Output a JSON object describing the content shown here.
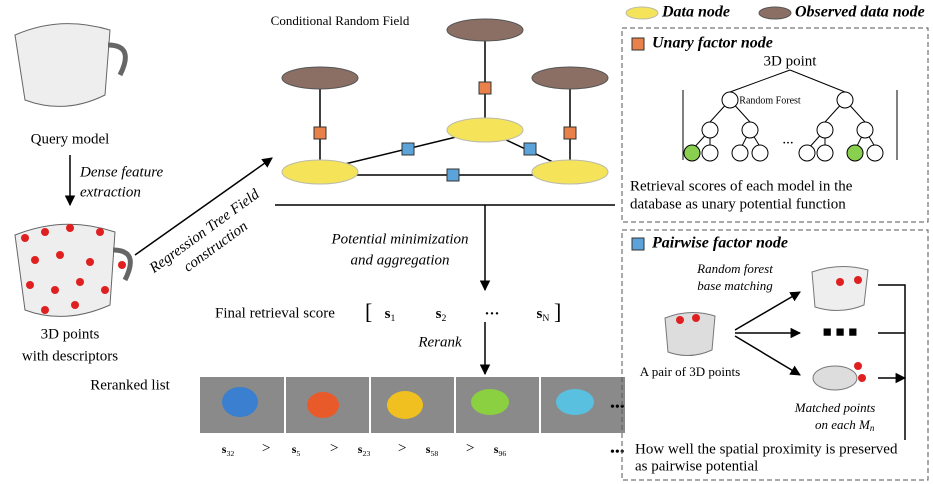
{
  "crf_title": "Conditional Random Field",
  "legend": {
    "data_node": "Data node",
    "observed_node": "Observed data node"
  },
  "unary": {
    "title": "Unary factor node",
    "root": "3D point",
    "forest": "Random Forest",
    "ellipsis": "...",
    "caption": [
      "Retrieval scores of each model in the",
      "database as unary potential function"
    ]
  },
  "pairwise": {
    "title": "Pairwise factor node",
    "matching": [
      "Random forest",
      "base matching"
    ],
    "pair": "A pair of 3D points",
    "matched": [
      "Matched points",
      "on each "
    ],
    "matched_symbol": {
      "base": "M",
      "sub": "n"
    },
    "caption": [
      "How well the spatial proximity is preserved",
      "as pairwise potential"
    ]
  },
  "left": {
    "query": "Query model",
    "step1": [
      "Dense feature",
      "extraction"
    ],
    "points": [
      "3D points",
      "with descriptors"
    ],
    "step2": [
      "Regression Tree Field",
      "construction"
    ]
  },
  "center": {
    "step3": [
      "Potential minimization",
      "and aggregation"
    ],
    "final_label": "Final retrieval score",
    "final_scores": [
      {
        "base": "s",
        "sub": "1"
      },
      {
        "base": "s",
        "sub": "2"
      },
      {
        "base": "···",
        "sub": ""
      },
      {
        "base": "s",
        "sub": "N"
      }
    ],
    "rerank": "Rerank",
    "reranked_label": "Reranked list",
    "ranked": [
      {
        "base": "s",
        "sub": "32"
      },
      {
        "base": "s",
        "sub": "5"
      },
      {
        "base": "s",
        "sub": "23"
      },
      {
        "base": "s",
        "sub": "58"
      },
      {
        "base": "s",
        "sub": "96"
      }
    ],
    "separator": ">",
    "more": "•••"
  }
}
